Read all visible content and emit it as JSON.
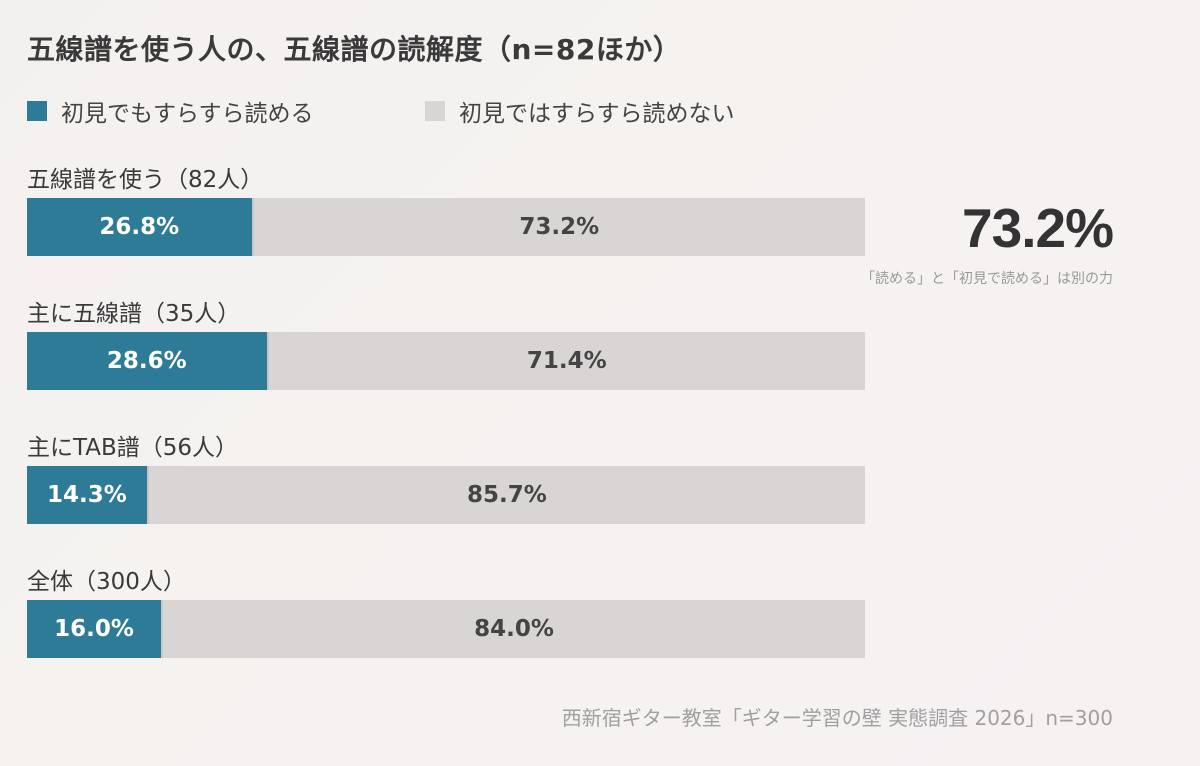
{
  "colors": {
    "read": "#2e7b97",
    "noread": "#d8d5d4"
  },
  "chart_data": {
    "type": "bar",
    "orientation": "horizontal-stacked-100",
    "title": "五線譜を使う人の、五線譜の読解度（n=82ほか）",
    "legend_placement": "top-left",
    "series": [
      {
        "name": "初見でもすらすら読める",
        "values": [
          26.8,
          28.6,
          14.3,
          16.0
        ]
      },
      {
        "name": "初見ではすらすら読めない",
        "values": [
          73.2,
          71.4,
          85.7,
          84.0
        ]
      }
    ],
    "categories": [
      "五線譜を使う（82人）",
      "主に五線譜（35人）",
      "主にTAB譜（56人）",
      "全体（300人）"
    ],
    "data_labels": [
      [
        "26.8%",
        "73.2%"
      ],
      [
        "28.6%",
        "71.4%"
      ],
      [
        "14.3%",
        "85.7%"
      ],
      [
        "16.0%",
        "84.0%"
      ]
    ],
    "callout": {
      "value": "73.2%",
      "note": "「読める」と「初見で読める」は別の力"
    },
    "source": "西新宿ギター教室「ギター学習の壁 実態調査 2026」n=300",
    "unit": "%"
  }
}
